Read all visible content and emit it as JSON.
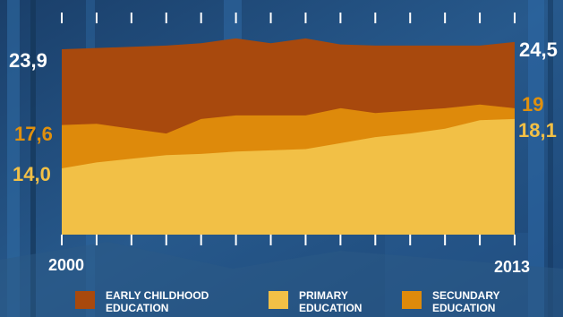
{
  "chart_data": {
    "type": "area",
    "stacked": false,
    "title": "",
    "x": [
      2000,
      2001,
      2002,
      2003,
      2004,
      2005,
      2006,
      2007,
      2008,
      2009,
      2010,
      2011,
      2012,
      2013
    ],
    "x_tick_labels": [
      "2000",
      "2013"
    ],
    "series": [
      {
        "name": "EARLY CHILDHOOD EDUCATION",
        "color": "#a8490d",
        "values": [
          23.9,
          24.0,
          24.1,
          24.2,
          24.4,
          24.8,
          24.4,
          24.8,
          24.3,
          24.2,
          24.2,
          24.2,
          24.2,
          24.5
        ]
      },
      {
        "name": "SECUNDARY EDUCATION",
        "color": "#de8a0b",
        "values": [
          17.6,
          17.7,
          17.3,
          16.9,
          18.1,
          18.4,
          18.4,
          18.4,
          19.0,
          18.6,
          18.8,
          19.0,
          19.3,
          19.0
        ]
      },
      {
        "name": "PRIMARY EDUCATION",
        "color": "#f2c046",
        "values": [
          14.0,
          14.5,
          14.8,
          15.1,
          15.2,
          15.4,
          15.5,
          15.6,
          16.1,
          16.6,
          16.9,
          17.3,
          18.0,
          18.1
        ]
      }
    ],
    "start_labels": [
      "23,9",
      "17,6",
      "14,0"
    ],
    "end_labels": [
      "24,5",
      "19",
      "18,1"
    ],
    "ylim": [
      8.5,
      26.5
    ],
    "grid": false,
    "legend_position": "bottom"
  },
  "colors": {
    "early": "#a8490d",
    "secundary": "#de8a0b",
    "primary": "#f2c046",
    "background": "#1d4a78",
    "tick": "#ffffff"
  },
  "legend": {
    "early_line1": "EARLY CHILDHOOD",
    "early_line2": "EDUCATION",
    "primary_line1": "PRIMARY",
    "primary_line2": "EDUCATION",
    "secundary_line1": "SECUNDARY",
    "secundary_line2": "EDUCATION"
  }
}
